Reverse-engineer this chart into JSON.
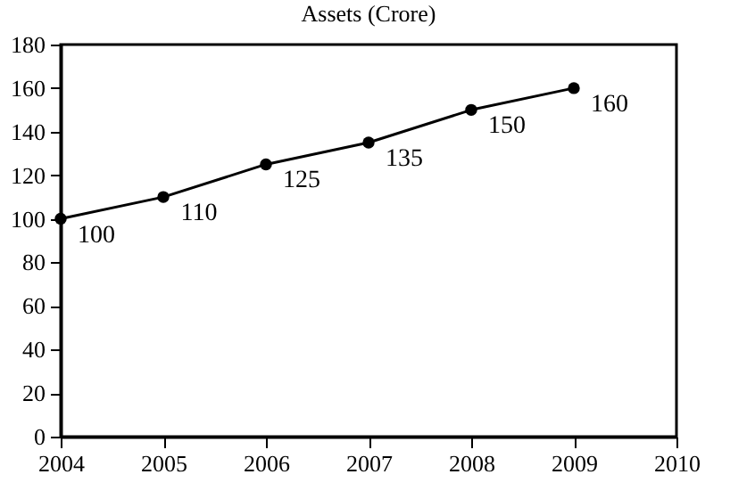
{
  "chart_data": {
    "type": "line",
    "title": "Assets (Crore)",
    "x": [
      2004,
      2005,
      2006,
      2007,
      2008,
      2009
    ],
    "series": [
      {
        "color": "#000000",
        "values": [
          100,
          110,
          125,
          135,
          150,
          160
        ]
      }
    ],
    "xlim": [
      2004,
      2010
    ],
    "xticks": [
      2004,
      2005,
      2006,
      2007,
      2008,
      2009,
      2010
    ],
    "ylim": [
      0,
      180
    ],
    "yticks": [
      0,
      20,
      40,
      60,
      80,
      100,
      120,
      140,
      160,
      180
    ],
    "grid": false,
    "legend": false,
    "marker": "circle",
    "line_style": "solid",
    "data_labels": true
  }
}
